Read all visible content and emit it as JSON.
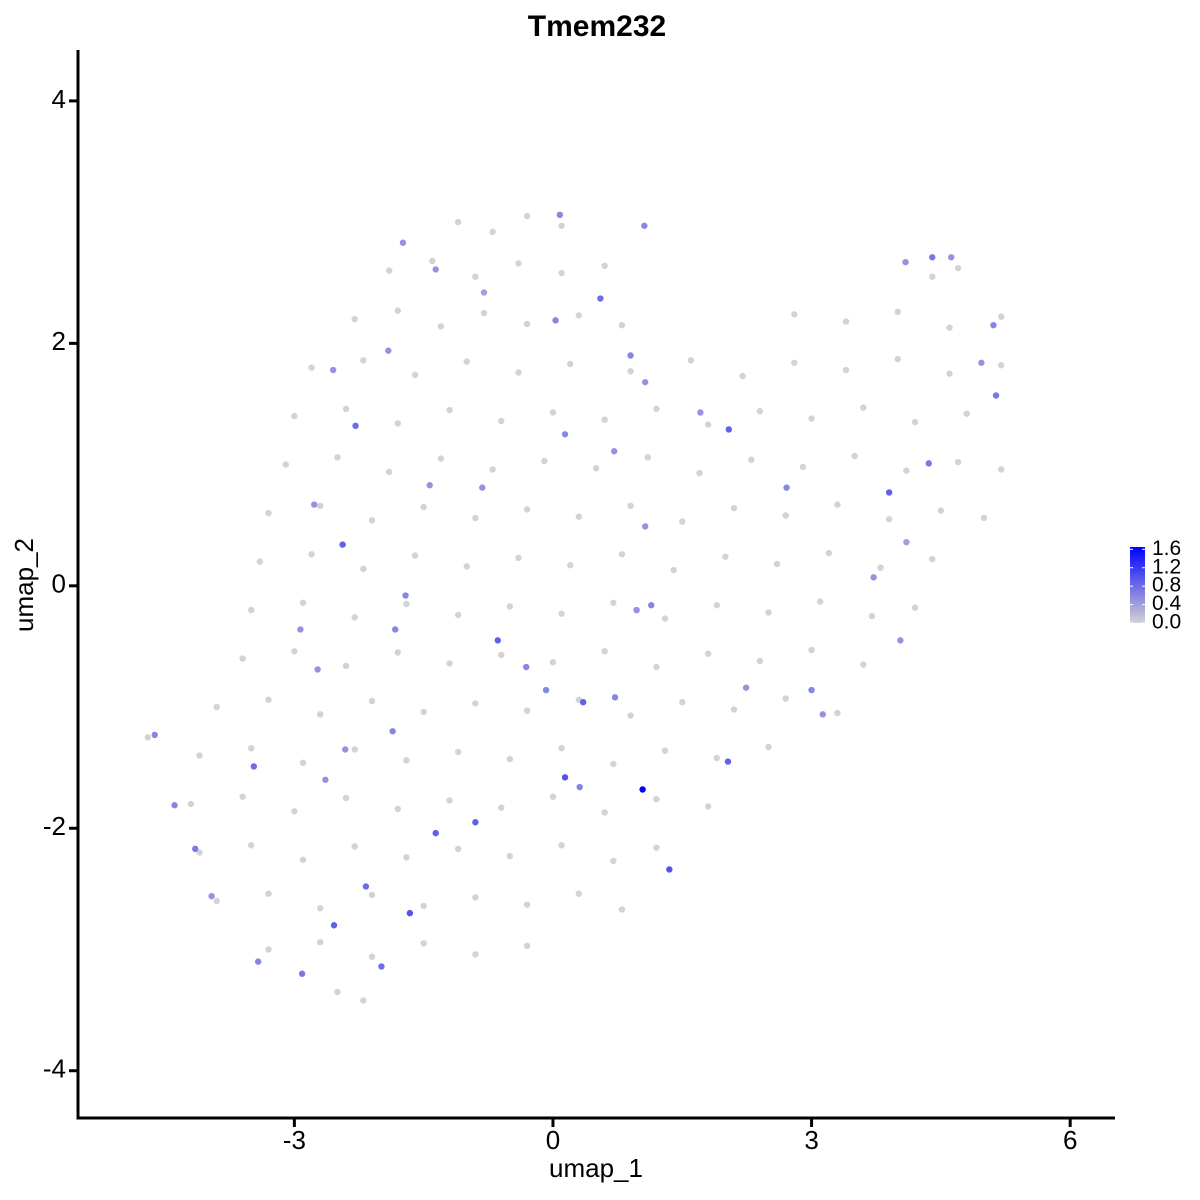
{
  "chart_data": {
    "type": "scatter",
    "title": "Tmem232",
    "x_label": "umap_1",
    "y_label": "umap_2",
    "xlim": [
      -5.51,
      6.52
    ],
    "ylim": [
      -4.39,
      4.42
    ],
    "xticks": [
      -3,
      0,
      3,
      6
    ],
    "yticks": [
      -4,
      -2,
      0,
      2,
      4
    ],
    "colorbar": {
      "lim": [
        0,
        1.65
      ],
      "colors": [
        "#d3d3d3",
        "#0000ff"
      ],
      "ticks": [
        {
          "value": 0,
          "label": "0.0"
        },
        {
          "value": 0.4,
          "label": "0.4"
        },
        {
          "value": 0.8,
          "label": "0.8"
        },
        {
          "value": 1.2,
          "label": "1.2"
        },
        {
          "value": 1.6,
          "label": "1.6"
        }
      ]
    },
    "x": [
      -1.1,
      -0.7,
      -0.3,
      0.1,
      -1.9,
      -1.4,
      -0.9,
      -0.4,
      0.1,
      0.6,
      4.4,
      4.7,
      -2.3,
      -1.8,
      -1.3,
      -0.8,
      -0.3,
      0.3,
      0.8,
      2.8,
      3.4,
      4.0,
      4.6,
      5.2,
      -2.8,
      -2.2,
      -1.6,
      -1.0,
      -0.4,
      0.2,
      0.9,
      1.6,
      2.2,
      2.8,
      3.4,
      4.0,
      4.6,
      5.2,
      -3.0,
      -2.4,
      -1.8,
      -1.2,
      -0.6,
      0.0,
      0.6,
      1.2,
      1.8,
      2.4,
      3.0,
      3.6,
      4.2,
      4.8,
      -3.1,
      -2.5,
      -1.9,
      -1.3,
      -0.7,
      -0.1,
      0.5,
      1.1,
      1.7,
      2.3,
      2.9,
      3.5,
      4.1,
      4.7,
      5.2,
      -3.3,
      -2.7,
      -2.1,
      -1.5,
      -0.9,
      -0.3,
      0.3,
      0.9,
      1.5,
      2.1,
      2.7,
      3.3,
      3.9,
      4.5,
      5.0,
      -3.4,
      -2.8,
      -2.2,
      -1.6,
      -1.0,
      -0.4,
      0.2,
      0.8,
      1.4,
      2.0,
      2.6,
      3.2,
      3.8,
      4.4,
      -3.5,
      -2.9,
      -2.3,
      -1.7,
      -1.1,
      -0.5,
      0.1,
      0.7,
      1.3,
      1.9,
      2.5,
      3.1,
      3.7,
      4.2,
      -3.6,
      -3.0,
      -2.4,
      -1.8,
      -1.2,
      -0.6,
      0.0,
      0.6,
      1.2,
      1.8,
      2.4,
      3.0,
      3.6,
      -3.9,
      -3.3,
      -2.7,
      -2.1,
      -1.5,
      -0.9,
      -0.3,
      0.3,
      0.9,
      1.5,
      2.1,
      2.7,
      3.3,
      -4.1,
      -3.5,
      -2.9,
      -2.3,
      -1.7,
      -1.1,
      -0.5,
      0.1,
      0.7,
      1.3,
      1.9,
      2.5,
      -4.2,
      -3.6,
      -3.0,
      -2.4,
      -1.8,
      -1.2,
      -0.6,
      0.0,
      0.6,
      1.2,
      1.8,
      -4.1,
      -3.5,
      -2.9,
      -2.3,
      -1.7,
      -1.1,
      -0.5,
      0.1,
      0.7,
      1.2,
      -3.9,
      -3.3,
      -2.7,
      -2.1,
      -1.5,
      -0.9,
      -0.3,
      0.3,
      0.8,
      -3.3,
      -2.7,
      -2.1,
      -1.5,
      -0.9,
      -0.3,
      -2.5,
      -2.2,
      -4.7,
      0.08,
      1.06,
      -1.74,
      -1.36,
      0.55,
      0.03,
      -0.8,
      -1.91,
      -2.55,
      -2.29,
      0.9,
      1.07,
      2.04,
      0.14,
      -0.82,
      -2.77,
      -2.44,
      1.07,
      -0.64,
      -0.31,
      -0.08,
      0.35,
      0.14,
      1.04,
      0.31,
      1.35,
      -0.9,
      -1.36,
      -1.66,
      -1.99,
      -2.91,
      -3.42,
      -2.54,
      -2.17,
      -4.39,
      -4.15,
      -3.96,
      -3.47,
      -2.64,
      -2.73,
      -2.93,
      2.03,
      3.0,
      3.13,
      3.72,
      3.9,
      4.36,
      4.1,
      4.03,
      5.14,
      4.97,
      5.11,
      4.62,
      4.4,
      4.09,
      -4.62,
      2.71,
      0.71,
      1.71,
      1.14,
      0.97,
      0.72,
      2.24,
      -1.86,
      -2.41,
      -1.71,
      -1.83,
      -1.43
    ],
    "values": [
      3.0,
      2.92,
      3.05,
      2.97,
      2.6,
      2.68,
      2.55,
      2.66,
      2.58,
      2.64,
      2.55,
      2.62,
      2.2,
      2.27,
      2.14,
      2.25,
      2.16,
      2.23,
      2.15,
      2.24,
      2.18,
      2.26,
      2.13,
      2.22,
      1.8,
      1.86,
      1.74,
      1.85,
      1.76,
      1.83,
      1.77,
      1.86,
      1.73,
      1.84,
      1.78,
      1.87,
      1.75,
      1.82,
      1.4,
      1.46,
      1.34,
      1.45,
      1.36,
      1.43,
      1.37,
      1.46,
      1.33,
      1.44,
      1.38,
      1.47,
      1.35,
      1.42,
      1.0,
      1.06,
      0.94,
      1.05,
      0.96,
      1.03,
      0.97,
      1.06,
      0.93,
      1.04,
      0.98,
      1.07,
      0.95,
      1.02,
      0.96,
      0.6,
      0.66,
      0.54,
      0.65,
      0.56,
      0.63,
      0.57,
      0.66,
      0.53,
      0.64,
      0.58,
      0.67,
      0.55,
      0.62,
      0.56,
      0.2,
      0.26,
      0.14,
      0.25,
      0.16,
      0.23,
      0.17,
      0.26,
      0.13,
      0.24,
      0.18,
      0.27,
      0.15,
      0.22,
      -0.2,
      -0.14,
      -0.26,
      -0.15,
      -0.24,
      -0.17,
      -0.23,
      -0.14,
      -0.27,
      -0.16,
      -0.22,
      -0.13,
      -0.25,
      -0.18,
      -0.6,
      -0.54,
      -0.66,
      -0.55,
      -0.64,
      -0.57,
      -0.63,
      -0.54,
      -0.67,
      -0.56,
      -0.62,
      -0.53,
      -0.65,
      -1.0,
      -0.94,
      -1.06,
      -0.95,
      -1.04,
      -0.97,
      -1.03,
      -0.94,
      -1.07,
      -0.96,
      -1.02,
      -0.93,
      -1.05,
      -1.4,
      -1.34,
      -1.46,
      -1.35,
      -1.44,
      -1.37,
      -1.43,
      -1.34,
      -1.47,
      -1.36,
      -1.42,
      -1.33,
      -1.8,
      -1.74,
      -1.86,
      -1.75,
      -1.84,
      -1.77,
      -1.83,
      -1.74,
      -1.87,
      -1.76,
      -1.82,
      -2.2,
      -2.14,
      -2.26,
      -2.15,
      -2.24,
      -2.17,
      -2.23,
      -2.14,
      -2.27,
      -2.16,
      -2.6,
      -2.54,
      -2.66,
      -2.55,
      -2.64,
      -2.57,
      -2.63,
      -2.54,
      -2.67,
      -3.0,
      -2.94,
      -3.06,
      -2.95,
      -3.04,
      -2.97,
      -3.35,
      -3.42,
      -1.25,
      3.06,
      2.97,
      2.83,
      2.61,
      2.37,
      2.19,
      2.42,
      1.94,
      1.78,
      1.32,
      1.9,
      1.68,
      1.29,
      1.25,
      0.81,
      0.67,
      0.34,
      0.49,
      -0.45,
      -0.67,
      -0.86,
      -0.96,
      -1.58,
      -1.68,
      -1.66,
      -2.34,
      -1.95,
      -2.04,
      -2.7,
      -3.14,
      -3.2,
      -3.1,
      -2.8,
      -2.48,
      -1.81,
      -2.17,
      -2.56,
      -1.49,
      -1.6,
      -0.69,
      -0.36,
      -1.45,
      -0.86,
      -1.06,
      0.07,
      0.77,
      1.01,
      0.36,
      -0.45,
      1.57,
      1.84,
      2.15,
      2.71,
      2.71,
      2.67,
      -1.23,
      0.81,
      1.11,
      1.43,
      -0.16,
      -0.2,
      -0.92,
      -0.84,
      -1.2,
      -1.35,
      -0.08,
      -0.36,
      0.83
    ],
    "color_values": [
      0,
      0,
      0,
      0,
      0,
      0,
      0,
      0,
      0,
      0,
      0,
      0,
      0,
      0,
      0,
      0,
      0,
      0,
      0,
      0,
      0,
      0,
      0,
      0,
      0,
      0,
      0,
      0,
      0,
      0,
      0,
      0,
      0,
      0,
      0,
      0,
      0,
      0,
      0,
      0,
      0,
      0,
      0,
      0,
      0,
      0,
      0,
      0,
      0,
      0,
      0,
      0,
      0,
      0,
      0,
      0,
      0,
      0,
      0,
      0,
      0,
      0,
      0,
      0,
      0,
      0,
      0,
      0,
      0,
      0,
      0,
      0,
      0,
      0,
      0,
      0,
      0,
      0,
      0,
      0,
      0,
      0,
      0,
      0,
      0,
      0,
      0,
      0,
      0,
      0,
      0,
      0,
      0,
      0,
      0,
      0,
      0,
      0,
      0,
      0,
      0,
      0,
      0,
      0,
      0,
      0,
      0,
      0,
      0,
      0,
      0,
      0,
      0,
      0,
      0,
      0,
      0,
      0,
      0,
      0,
      0,
      0,
      0,
      0,
      0,
      0,
      0,
      0,
      0,
      0,
      0,
      0,
      0,
      0,
      0,
      0,
      0,
      0,
      0,
      0,
      0,
      0,
      0,
      0,
      0,
      0,
      0,
      0,
      0,
      0,
      0,
      0,
      0,
      0,
      0,
      0,
      0,
      0,
      0,
      0,
      0,
      0,
      0,
      0,
      0,
      0,
      0,
      0,
      0,
      0,
      0,
      0,
      0,
      0,
      0,
      0,
      0,
      0,
      0,
      0,
      0,
      0,
      0,
      0,
      0,
      0,
      0,
      0.6,
      0.6,
      0.5,
      0.5,
      0.8,
      0.6,
      0.4,
      0.5,
      0.5,
      0.8,
      0.6,
      0.5,
      0.9,
      0.6,
      0.5,
      0.5,
      0.9,
      0.5,
      0.9,
      0.6,
      0.6,
      0.9,
      1.0,
      1.65,
      0.6,
      1.0,
      0.9,
      0.9,
      1.0,
      0.8,
      0.7,
      0.6,
      0.9,
      0.8,
      0.6,
      0.7,
      0.5,
      0.8,
      0.5,
      0.5,
      0.5,
      0.9,
      0.6,
      0.5,
      0.5,
      0.9,
      0.7,
      0.4,
      0.5,
      0.7,
      0.5,
      0.6,
      0.5,
      0.7,
      0.5,
      0.6,
      0.6,
      0.5,
      0.5,
      0.6,
      0.5,
      0.6,
      0.5,
      0.6,
      0.5,
      0.6,
      0.6,
      0.5
    ]
  }
}
